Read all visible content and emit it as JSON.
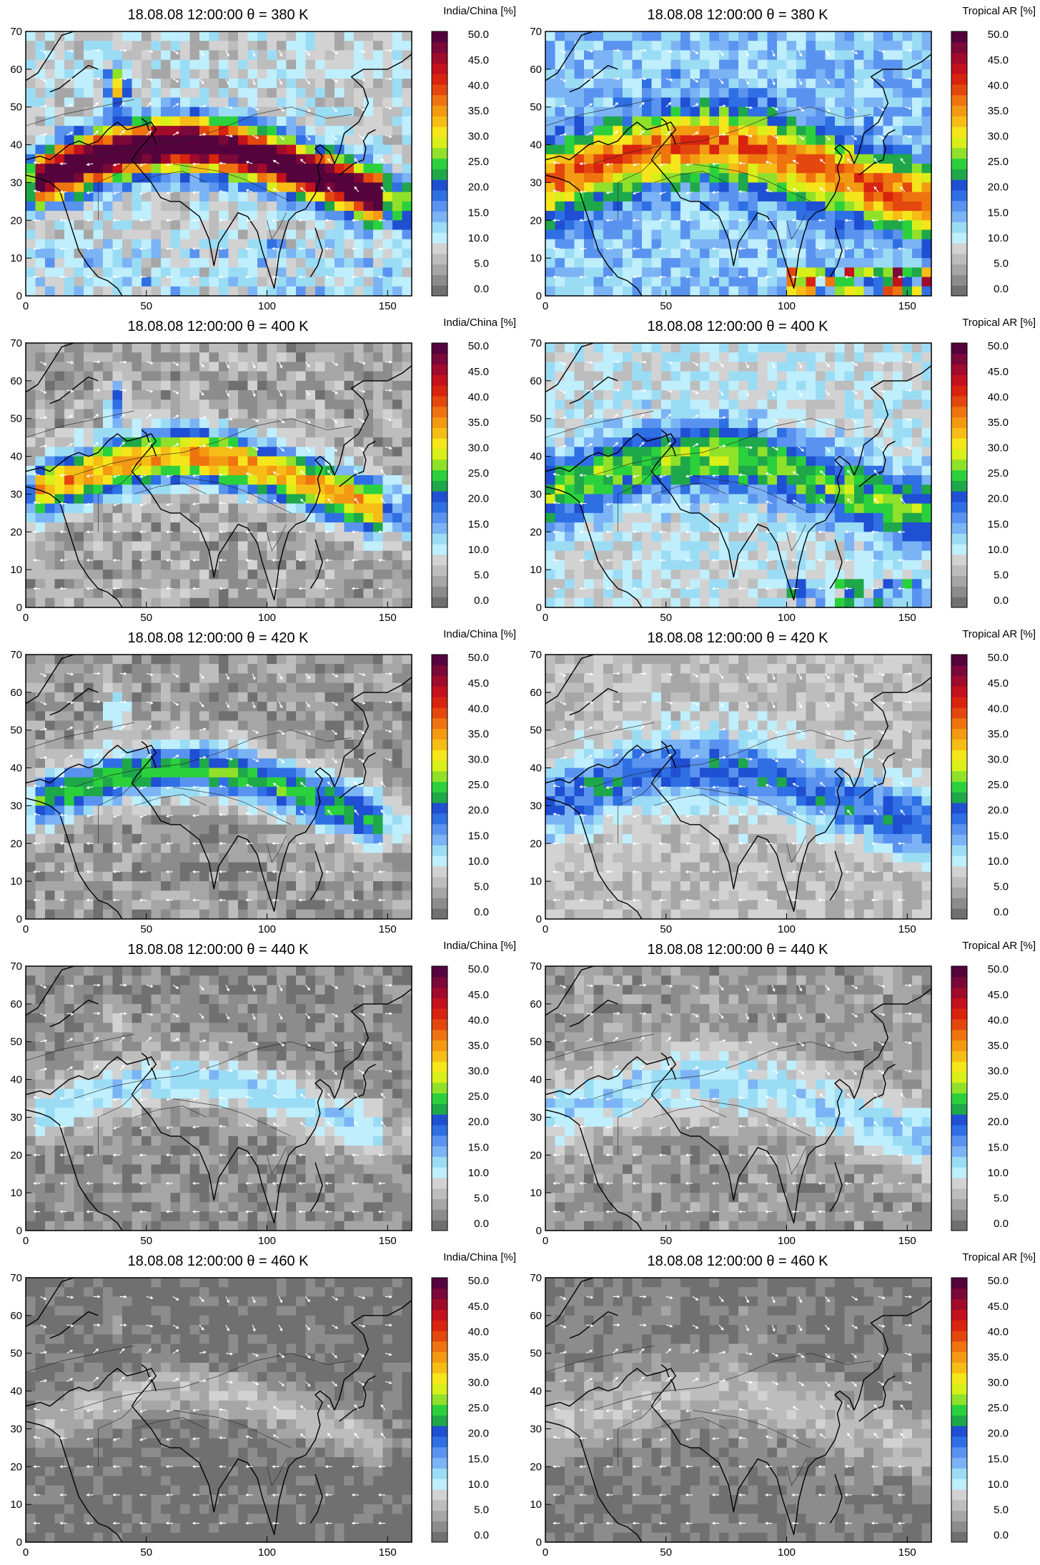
{
  "figure": {
    "rows": [
      {
        "row_title": "18.08.08 12:00:00  θ = 380 K"
      },
      {
        "row_title": "18.08.08 12:00:00  θ = 400 K"
      },
      {
        "row_title": "18.08.08 12:00:00  θ = 420 K"
      },
      {
        "row_title": "18.08.08 12:00:00  θ = 440 K"
      },
      {
        "row_title": "18.08.08 12:00:00  θ = 460 K"
      }
    ],
    "columns": [
      {
        "colorbar_label": "India/China [%]"
      },
      {
        "colorbar_label": "Tropical AR [%]"
      }
    ],
    "x_ticks": [
      "0",
      "50",
      "100",
      "150"
    ],
    "y_ticks": [
      "0",
      "10",
      "20",
      "30",
      "40",
      "50",
      "60",
      "70"
    ],
    "colorbar_ticks": [
      "0.0",
      "5.0",
      "10.0",
      "15.0",
      "20.0",
      "25.0",
      "30.0",
      "35.0",
      "40.0",
      "45.0",
      "50.0"
    ],
    "colorbar_colors": [
      "#707070",
      "#8c8c8c",
      "#a6a6a6",
      "#bdbdbd",
      "#d2d2d2",
      "#bfeefc",
      "#9bdcf5",
      "#7bb3f5",
      "#5a93ef",
      "#2f6fe4",
      "#1f4fd2",
      "#1ea84a",
      "#2bd13c",
      "#8fe12a",
      "#d8ef1a",
      "#f5e61c",
      "#f6bd16",
      "#f39a12",
      "#ef7410",
      "#e4470e",
      "#d8230f",
      "#c3111d",
      "#a00b2b",
      "#7a0838",
      "#55033d"
    ]
  },
  "chart_data": {
    "type": "heatmap",
    "x_range": [
      0,
      160
    ],
    "y_range": [
      0,
      70
    ],
    "colorbar_range": [
      0,
      50
    ],
    "panels": [
      {
        "row_title": "18.08.08 12:00:00  θ = 380 K",
        "colorbar_label": "India/China [%]"
      },
      {
        "row_title": "18.08.08 12:00:00  θ = 380 K",
        "colorbar_label": "Tropical AR [%]"
      },
      {
        "row_title": "18.08.08 12:00:00  θ = 400 K",
        "colorbar_label": "India/China [%]"
      },
      {
        "row_title": "18.08.08 12:00:00  θ = 400 K",
        "colorbar_label": "Tropical AR [%]"
      },
      {
        "row_title": "18.08.08 12:00:00  θ = 420 K",
        "colorbar_label": "India/China [%]"
      },
      {
        "row_title": "18.08.08 12:00:00  θ = 420 K",
        "colorbar_label": "Tropical AR [%]"
      },
      {
        "row_title": "18.08.08 12:00:00  θ = 440 K",
        "colorbar_label": "India/China [%]"
      },
      {
        "row_title": "18.08.08 12:00:00  θ = 440 K",
        "colorbar_label": "Tropical AR [%]"
      },
      {
        "row_title": "18.08.08 12:00:00  θ = 460 K",
        "colorbar_label": "India/China [%]"
      },
      {
        "row_title": "18.08.08 12:00:00  θ = 460 K",
        "colorbar_label": "Tropical AR [%]"
      }
    ]
  }
}
